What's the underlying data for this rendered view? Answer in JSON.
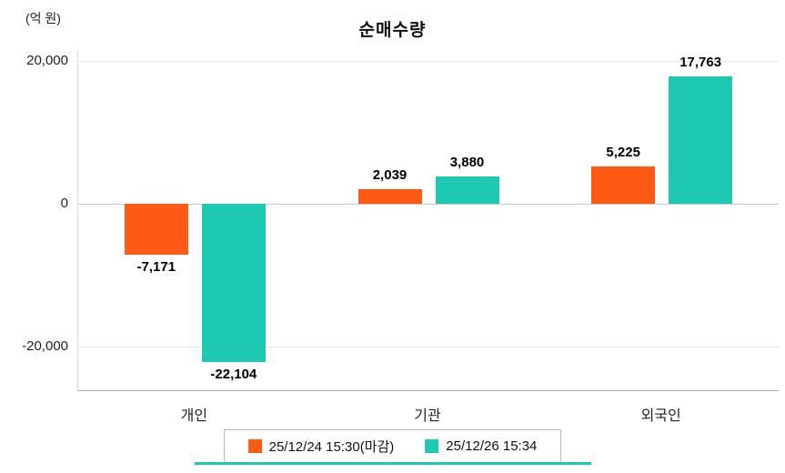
{
  "chart_data": {
    "type": "bar",
    "title": "순매수량",
    "ylabel": "(억 원)",
    "xlabel": "",
    "categories": [
      "개인",
      "기관",
      "외국인"
    ],
    "series": [
      {
        "name": "25/12/24 15:30(마감)",
        "color": "#ff5a14",
        "values": [
          -7171,
          2039,
          5225
        ],
        "value_labels": [
          "-7,171",
          "2,039",
          "5,225"
        ]
      },
      {
        "name": "25/12/26 15:34",
        "color": "#1ec9b2",
        "values": [
          -22104,
          3880,
          17763
        ],
        "value_labels": [
          "-22,104",
          "3,880",
          "17,763"
        ]
      }
    ],
    "ylim": [
      -26200,
      21500
    ],
    "y_ticks": [
      20000,
      0,
      -20000
    ],
    "y_tick_labels": [
      "20,000",
      "0",
      "-20,000"
    ],
    "grid": true,
    "legend_position": "bottom",
    "value_labels_shown": true
  },
  "accent_color": "#1ec9b2"
}
